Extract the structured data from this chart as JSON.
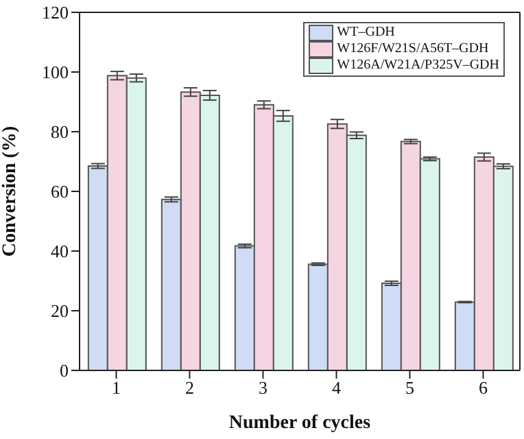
{
  "chart_data": {
    "type": "bar",
    "xlabel": "Number of cycles",
    "ylabel": "Conversion (%)",
    "categories": [
      "1",
      "2",
      "3",
      "4",
      "5",
      "6"
    ],
    "series": [
      {
        "name": "WT–GDH",
        "color": "#d0dcf5",
        "values": [
          68.5,
          57.3,
          41.7,
          35.6,
          29.2,
          22.9
        ],
        "errors": [
          0.8,
          0.8,
          0.6,
          0.4,
          0.7,
          0.2
        ]
      },
      {
        "name": "W126F/W21S/A56T–GDH",
        "color": "#f5d5e1",
        "values": [
          98.8,
          93.3,
          89.0,
          82.6,
          76.7,
          71.5
        ],
        "errors": [
          1.4,
          1.4,
          1.3,
          1.5,
          0.7,
          1.3
        ]
      },
      {
        "name": "W126A/W21A/P325V–GDH",
        "color": "#dcf5ec",
        "values": [
          98.0,
          92.2,
          85.3,
          78.8,
          70.9,
          68.4
        ],
        "errors": [
          1.3,
          1.6,
          1.8,
          1.1,
          0.6,
          0.8
        ]
      }
    ],
    "ylim": [
      0,
      120
    ],
    "yticks": [
      0,
      20,
      40,
      60,
      80,
      100,
      120
    ],
    "grid": false,
    "legend": "top right"
  }
}
